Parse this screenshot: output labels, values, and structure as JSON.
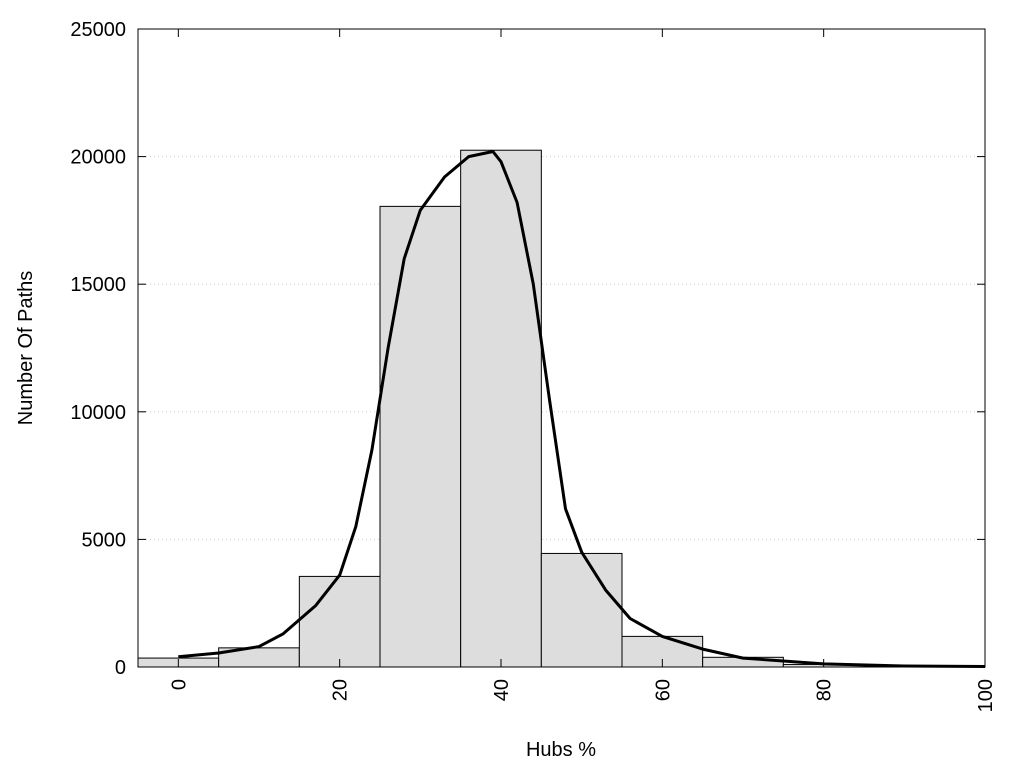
{
  "chart_data": {
    "type": "bar",
    "xlabel": "Hubs %",
    "ylabel": "Number Of Paths",
    "xlim": [
      -5,
      100
    ],
    "ylim": [
      0,
      25000
    ],
    "x_ticks": [
      0,
      20,
      40,
      60,
      80,
      100
    ],
    "y_ticks": [
      0,
      5000,
      10000,
      15000,
      20000,
      25000
    ],
    "grid": "horizontal dotted",
    "bin_width": 10,
    "bars": [
      {
        "x": 0,
        "value": 350
      },
      {
        "x": 10,
        "value": 750
      },
      {
        "x": 20,
        "value": 3550
      },
      {
        "x": 30,
        "value": 18050
      },
      {
        "x": 40,
        "value": 20250
      },
      {
        "x": 50,
        "value": 4450
      },
      {
        "x": 60,
        "value": 1200
      },
      {
        "x": 70,
        "value": 380
      },
      {
        "x": 80,
        "value": 100
      },
      {
        "x": 90,
        "value": 40
      }
    ],
    "curve": [
      {
        "x": 0,
        "y": 400
      },
      {
        "x": 5,
        "y": 550
      },
      {
        "x": 10,
        "y": 800
      },
      {
        "x": 13,
        "y": 1300
      },
      {
        "x": 17,
        "y": 2400
      },
      {
        "x": 20,
        "y": 3600
      },
      {
        "x": 22,
        "y": 5500
      },
      {
        "x": 24,
        "y": 8500
      },
      {
        "x": 26,
        "y": 12500
      },
      {
        "x": 28,
        "y": 16000
      },
      {
        "x": 30,
        "y": 17900
      },
      {
        "x": 33,
        "y": 19200
      },
      {
        "x": 36,
        "y": 20000
      },
      {
        "x": 39,
        "y": 20200
      },
      {
        "x": 40,
        "y": 19800
      },
      {
        "x": 42,
        "y": 18200
      },
      {
        "x": 44,
        "y": 15000
      },
      {
        "x": 46,
        "y": 10500
      },
      {
        "x": 48,
        "y": 6200
      },
      {
        "x": 50,
        "y": 4500
      },
      {
        "x": 53,
        "y": 3000
      },
      {
        "x": 56,
        "y": 1900
      },
      {
        "x": 60,
        "y": 1200
      },
      {
        "x": 65,
        "y": 700
      },
      {
        "x": 70,
        "y": 350
      },
      {
        "x": 80,
        "y": 120
      },
      {
        "x": 90,
        "y": 40
      },
      {
        "x": 100,
        "y": 20
      }
    ],
    "colors": {
      "bar_fill": "#dddddd",
      "bar_stroke": "#000000",
      "curve": "#000000",
      "grid": "#cccccc"
    }
  }
}
